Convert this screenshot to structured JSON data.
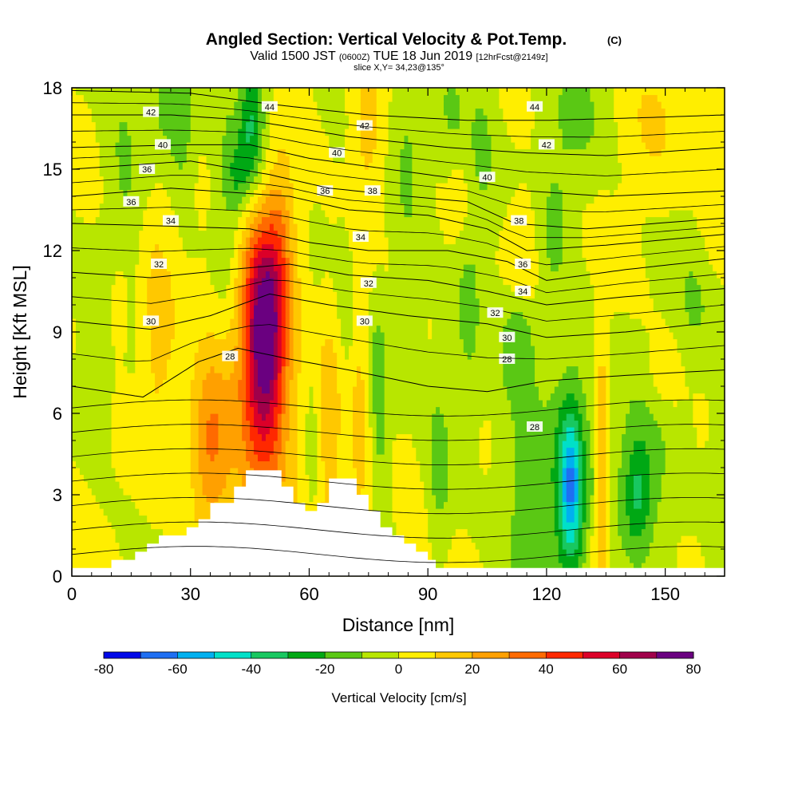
{
  "title": {
    "main": "Angled Section: Vertical Velocity & Pot.Temp.",
    "main_unit": "(C)",
    "line2_a": "Valid 1500 JST",
    "line2_b": "(0600Z)",
    "line2_c": "TUE 18 Jun 2019",
    "line2_d": "[12hrFcst@2149z]",
    "line3": "slice X,Y= 34,23@135°"
  },
  "chart_data": {
    "type": "heatmap",
    "xlabel": "Distance [nm]",
    "ylabel": "Height [Kft MSL]",
    "xlim": [
      0,
      165
    ],
    "ylim": [
      0,
      18
    ],
    "x_ticks": [
      "0",
      "30",
      "60",
      "90",
      "120",
      "150"
    ],
    "x_tick_values": [
      0,
      30,
      60,
      90,
      120,
      150
    ],
    "y_ticks": [
      "0",
      "3",
      "6",
      "9",
      "12",
      "15",
      "18"
    ],
    "y_tick_values": [
      0,
      3,
      6,
      9,
      12,
      15,
      18
    ],
    "colorbar": {
      "label": "Vertical Velocity [cm/s]",
      "tick_labels": [
        "-80",
        "-60",
        "-40",
        "-20",
        "0",
        "20",
        "40",
        "60",
        "80"
      ],
      "bins": [
        -80,
        -70,
        -60,
        -50,
        -40,
        -30,
        -20,
        -10,
        0,
        10,
        20,
        30,
        40,
        50,
        60,
        70,
        80
      ],
      "colors": [
        "#0008e8",
        "#1f6ff2",
        "#00b0f0",
        "#00e0c8",
        "#18c860",
        "#00a814",
        "#5ac814",
        "#b8e600",
        "#ffee00",
        "#ffc800",
        "#ffa000",
        "#ff6a00",
        "#ff2800",
        "#dc0028",
        "#a0004a",
        "#6a0080"
      ]
    },
    "background_colors": {
      "weak_up": "#ffee00",
      "weak_down": "#b8e600",
      "terrain": "#ffffff"
    },
    "velocity_features": [
      {
        "x": 49,
        "z": 8.6,
        "sx": 3.5,
        "sz": 2.8,
        "w": 57
      },
      {
        "x": 47,
        "z": 6.0,
        "sx": 6.5,
        "sz": 4.2,
        "w": 24
      },
      {
        "x": 48,
        "z": 11.0,
        "sx": 5.5,
        "sz": 2.5,
        "w": 20
      },
      {
        "x": 35,
        "z": 4.8,
        "sx": 3.5,
        "sz": 2.3,
        "w": 30
      },
      {
        "x": 22,
        "z": 9.5,
        "sx": 3.0,
        "sz": 3.5,
        "w": 14
      },
      {
        "x": 12,
        "z": 10.0,
        "sx": 1.5,
        "sz": 1.2,
        "w": 13
      },
      {
        "x": 65,
        "z": 5.5,
        "sx": 2.5,
        "sz": 3.0,
        "w": 16
      },
      {
        "x": 73,
        "z": 6.0,
        "sx": 2.5,
        "sz": 4.0,
        "w": 18
      },
      {
        "x": 87,
        "z": 3.0,
        "sx": 3.0,
        "sz": 2.5,
        "w": 16
      },
      {
        "x": 75,
        "z": 16.5,
        "sx": 3.0,
        "sz": 2.0,
        "w": 16
      },
      {
        "x": 53,
        "z": 13.0,
        "sx": 2.5,
        "sz": 2.0,
        "w": 12
      },
      {
        "x": 114,
        "z": 12.0,
        "sx": 3.0,
        "sz": 1.5,
        "w": 13
      },
      {
        "x": 98,
        "z": 14.0,
        "sx": 2.5,
        "sz": 1.5,
        "w": 11
      },
      {
        "x": 134,
        "z": 4.0,
        "sx": 1.2,
        "sz": 4.0,
        "w": 24
      },
      {
        "x": 132,
        "z": 1.2,
        "sx": 2.0,
        "sz": 1.0,
        "w": 10
      },
      {
        "x": 150,
        "z": 7.5,
        "sx": 3.0,
        "sz": 1.0,
        "w": 10
      },
      {
        "x": 147,
        "z": 17.0,
        "sx": 5.0,
        "sz": 2.0,
        "w": 9
      },
      {
        "x": 162,
        "z": 14.0,
        "sx": 3.0,
        "sz": 3.0,
        "w": 8
      },
      {
        "x": 63,
        "z": 1.0,
        "sx": 2.5,
        "sz": 1.0,
        "w": 8
      },
      {
        "x": 1,
        "z": 1.0,
        "sx": 2.0,
        "sz": 2.0,
        "w": 6
      },
      {
        "x": 126,
        "z": 3.3,
        "sx": 2.0,
        "sz": 2.0,
        "w": -40
      },
      {
        "x": 126,
        "z": 3.5,
        "sx": 4.5,
        "sz": 3.5,
        "w": -20
      },
      {
        "x": 114,
        "z": 3.5,
        "sx": 4.5,
        "sz": 3.5,
        "w": -14
      },
      {
        "x": 143,
        "z": 3.0,
        "sx": 2.5,
        "sz": 1.5,
        "w": -22
      },
      {
        "x": 145,
        "z": 3.5,
        "sx": 6.0,
        "sz": 2.5,
        "w": -13
      },
      {
        "x": 113,
        "z": 8.7,
        "sx": 3.0,
        "sz": 1.3,
        "w": -16
      },
      {
        "x": 88,
        "z": 3.6,
        "sx": 3.0,
        "sz": 2.5,
        "w": -12
      },
      {
        "x": 93,
        "z": 3.8,
        "sx": 2.0,
        "sz": 2.2,
        "w": -13
      },
      {
        "x": 40,
        "z": 13.0,
        "sx": 3.0,
        "sz": 3.0,
        "w": -18
      },
      {
        "x": 42,
        "z": 14.8,
        "sx": 2.0,
        "sz": 1.0,
        "w": -14
      },
      {
        "x": 45,
        "z": 16.8,
        "sx": 1.8,
        "sz": 2.0,
        "w": -20
      },
      {
        "x": 47,
        "z": 16.3,
        "sx": 2.5,
        "sz": 2.5,
        "w": -15
      },
      {
        "x": 24,
        "z": 17.5,
        "sx": 3.0,
        "sz": 1.5,
        "w": -16
      },
      {
        "x": 28,
        "z": 16.5,
        "sx": 2.0,
        "sz": 1.5,
        "w": -13
      },
      {
        "x": 76,
        "z": 7.5,
        "sx": 2.0,
        "sz": 2.5,
        "w": -14
      },
      {
        "x": 78,
        "z": 5.5,
        "sx": 1.5,
        "sz": 3.0,
        "w": -11
      },
      {
        "x": 61,
        "z": 4.5,
        "sx": 1.5,
        "sz": 3.0,
        "w": -10
      },
      {
        "x": 96,
        "z": 16.5,
        "sx": 3.0,
        "sz": 2.0,
        "w": -12
      },
      {
        "x": 85,
        "z": 15.5,
        "sx": 3.0,
        "sz": 3.0,
        "w": -12
      },
      {
        "x": 104,
        "z": 16.0,
        "sx": 2.5,
        "sz": 2.5,
        "w": -11
      },
      {
        "x": 100,
        "z": 10.5,
        "sx": 2.5,
        "sz": 3.5,
        "w": -11
      },
      {
        "x": 122,
        "z": 13.0,
        "sx": 3.0,
        "sz": 2.0,
        "w": -11
      },
      {
        "x": 70,
        "z": 8.2,
        "sx": 2.0,
        "sz": 3.0,
        "w": -10
      },
      {
        "x": 13,
        "z": 15.0,
        "sx": 3.0,
        "sz": 3.5,
        "w": -10
      },
      {
        "x": 128,
        "z": 17.0,
        "sx": 5.0,
        "sz": 2.0,
        "w": -10
      },
      {
        "x": 158,
        "z": 10.0,
        "sx": 4.0,
        "sz": 2.0,
        "w": -10
      },
      {
        "x": 84,
        "z": 9.5,
        "sx": 2.5,
        "sz": 1.5,
        "w": -10
      },
      {
        "x": 6,
        "z": 6.5,
        "sx": 2.5,
        "sz": 1.5,
        "w": -10
      },
      {
        "x": 164,
        "z": 5.0,
        "sx": 2.0,
        "sz": 3.0,
        "w": -8
      }
    ],
    "terrain_steps": [
      [
        0,
        0.3
      ],
      [
        10,
        0.6
      ],
      [
        16,
        0.9
      ],
      [
        19,
        1.2
      ],
      [
        22,
        1.5
      ],
      [
        25,
        1.5
      ],
      [
        29,
        1.8
      ],
      [
        32,
        2.1
      ],
      [
        35,
        2.7
      ],
      [
        38,
        2.7
      ],
      [
        41,
        3.3
      ],
      [
        44,
        3.9
      ],
      [
        53,
        3.3
      ],
      [
        56,
        2.7
      ],
      [
        59,
        2.4
      ],
      [
        62,
        2.7
      ],
      [
        65,
        3.6
      ],
      [
        72,
        3.0
      ],
      [
        75,
        2.4
      ],
      [
        78,
        1.8
      ],
      [
        81,
        1.5
      ],
      [
        84,
        1.2
      ],
      [
        87,
        0.9
      ],
      [
        90,
        0.6
      ],
      [
        92,
        0.3
      ],
      [
        165,
        0.3
      ]
    ],
    "isentropes": [
      {
        "label": "28",
        "heights": [
          [
            0,
            7.0
          ],
          [
            18,
            6.6
          ],
          [
            32,
            7.9
          ],
          [
            42,
            8.4
          ],
          [
            55,
            8.0
          ],
          [
            70,
            7.6
          ],
          [
            90,
            7.0
          ],
          [
            105,
            6.8
          ],
          [
            120,
            7.2
          ],
          [
            140,
            7.4
          ],
          [
            165,
            7.6
          ]
        ],
        "labels_at": [
          [
            40,
            8.1
          ],
          [
            110,
            8.0
          ],
          [
            117,
            5.5
          ]
        ]
      },
      {
        "label": "30",
        "heights": [
          [
            0,
            9.4
          ],
          [
            20,
            9.1
          ],
          [
            35,
            9.6
          ],
          [
            50,
            10.4
          ],
          [
            65,
            10.0
          ],
          [
            85,
            9.6
          ],
          [
            105,
            9.3
          ],
          [
            120,
            8.8
          ],
          [
            140,
            9.0
          ],
          [
            165,
            9.4
          ]
        ],
        "labels_at": [
          [
            20,
            9.4
          ],
          [
            74,
            9.4
          ],
          [
            110,
            8.8
          ]
        ]
      },
      {
        "label": "32",
        "heights": [
          [
            0,
            11.2
          ],
          [
            20,
            11.0
          ],
          [
            40,
            11.3
          ],
          [
            55,
            11.5
          ],
          [
            70,
            11.1
          ],
          [
            90,
            10.9
          ],
          [
            105,
            10.5
          ],
          [
            120,
            10.0
          ],
          [
            140,
            10.3
          ],
          [
            165,
            10.6
          ]
        ],
        "labels_at": [
          [
            22,
            11.5
          ],
          [
            75,
            10.8
          ],
          [
            107,
            9.7
          ]
        ]
      },
      {
        "label": "34",
        "heights": [
          [
            0,
            13.0
          ],
          [
            25,
            12.9
          ],
          [
            45,
            12.8
          ],
          [
            60,
            12.3
          ],
          [
            75,
            12.0
          ],
          [
            95,
            12.0
          ],
          [
            110,
            11.6
          ],
          [
            120,
            10.9
          ],
          [
            140,
            11.3
          ],
          [
            165,
            11.7
          ]
        ],
        "labels_at": [
          [
            25,
            13.1
          ],
          [
            73,
            12.5
          ],
          [
            114,
            10.5
          ]
        ]
      },
      {
        "label": "36",
        "heights": [
          [
            0,
            14.0
          ],
          [
            25,
            14.3
          ],
          [
            45,
            14.1
          ],
          [
            55,
            14.0
          ],
          [
            70,
            13.5
          ],
          [
            90,
            13.3
          ],
          [
            105,
            12.8
          ],
          [
            115,
            12.0
          ],
          [
            135,
            12.2
          ],
          [
            165,
            12.6
          ]
        ],
        "labels_at": [
          [
            15,
            13.8
          ],
          [
            19,
            15.0
          ],
          [
            64,
            14.2
          ],
          [
            114,
            11.5
          ]
        ]
      },
      {
        "label": "38",
        "heights": [
          [
            0,
            15.0
          ],
          [
            30,
            15.3
          ],
          [
            50,
            14.8
          ],
          [
            65,
            14.3
          ],
          [
            85,
            14.0
          ],
          [
            100,
            13.8
          ],
          [
            112,
            13.0
          ],
          [
            130,
            12.8
          ],
          [
            165,
            13.2
          ]
        ],
        "labels_at": [
          [
            76,
            14.2
          ],
          [
            113,
            13.1
          ]
        ]
      },
      {
        "label": "40",
        "heights": [
          [
            0,
            15.8
          ],
          [
            30,
            15.9
          ],
          [
            45,
            15.9
          ],
          [
            60,
            15.4
          ],
          [
            80,
            15.0
          ],
          [
            100,
            14.6
          ],
          [
            115,
            14.2
          ],
          [
            135,
            14.0
          ],
          [
            165,
            14.2
          ]
        ],
        "labels_at": [
          [
            23,
            15.9
          ],
          [
            67,
            15.6
          ],
          [
            105,
            14.7
          ]
        ]
      },
      {
        "label": "42",
        "heights": [
          [
            0,
            17.0
          ],
          [
            25,
            17.0
          ],
          [
            45,
            16.8
          ],
          [
            70,
            16.2
          ],
          [
            95,
            15.8
          ],
          [
            115,
            15.6
          ],
          [
            135,
            15.5
          ],
          [
            165,
            15.8
          ]
        ],
        "labels_at": [
          [
            20,
            17.1
          ],
          [
            74,
            16.6
          ],
          [
            120,
            15.9
          ]
        ]
      },
      {
        "label": "44",
        "heights": [
          [
            0,
            17.9
          ],
          [
            30,
            17.8
          ],
          [
            50,
            17.4
          ],
          [
            75,
            17.0
          ],
          [
            100,
            16.8
          ],
          [
            120,
            16.8
          ],
          [
            145,
            16.9
          ],
          [
            165,
            17.0
          ]
        ],
        "labels_at": [
          [
            50,
            17.3
          ],
          [
            117,
            17.3
          ]
        ]
      }
    ]
  }
}
